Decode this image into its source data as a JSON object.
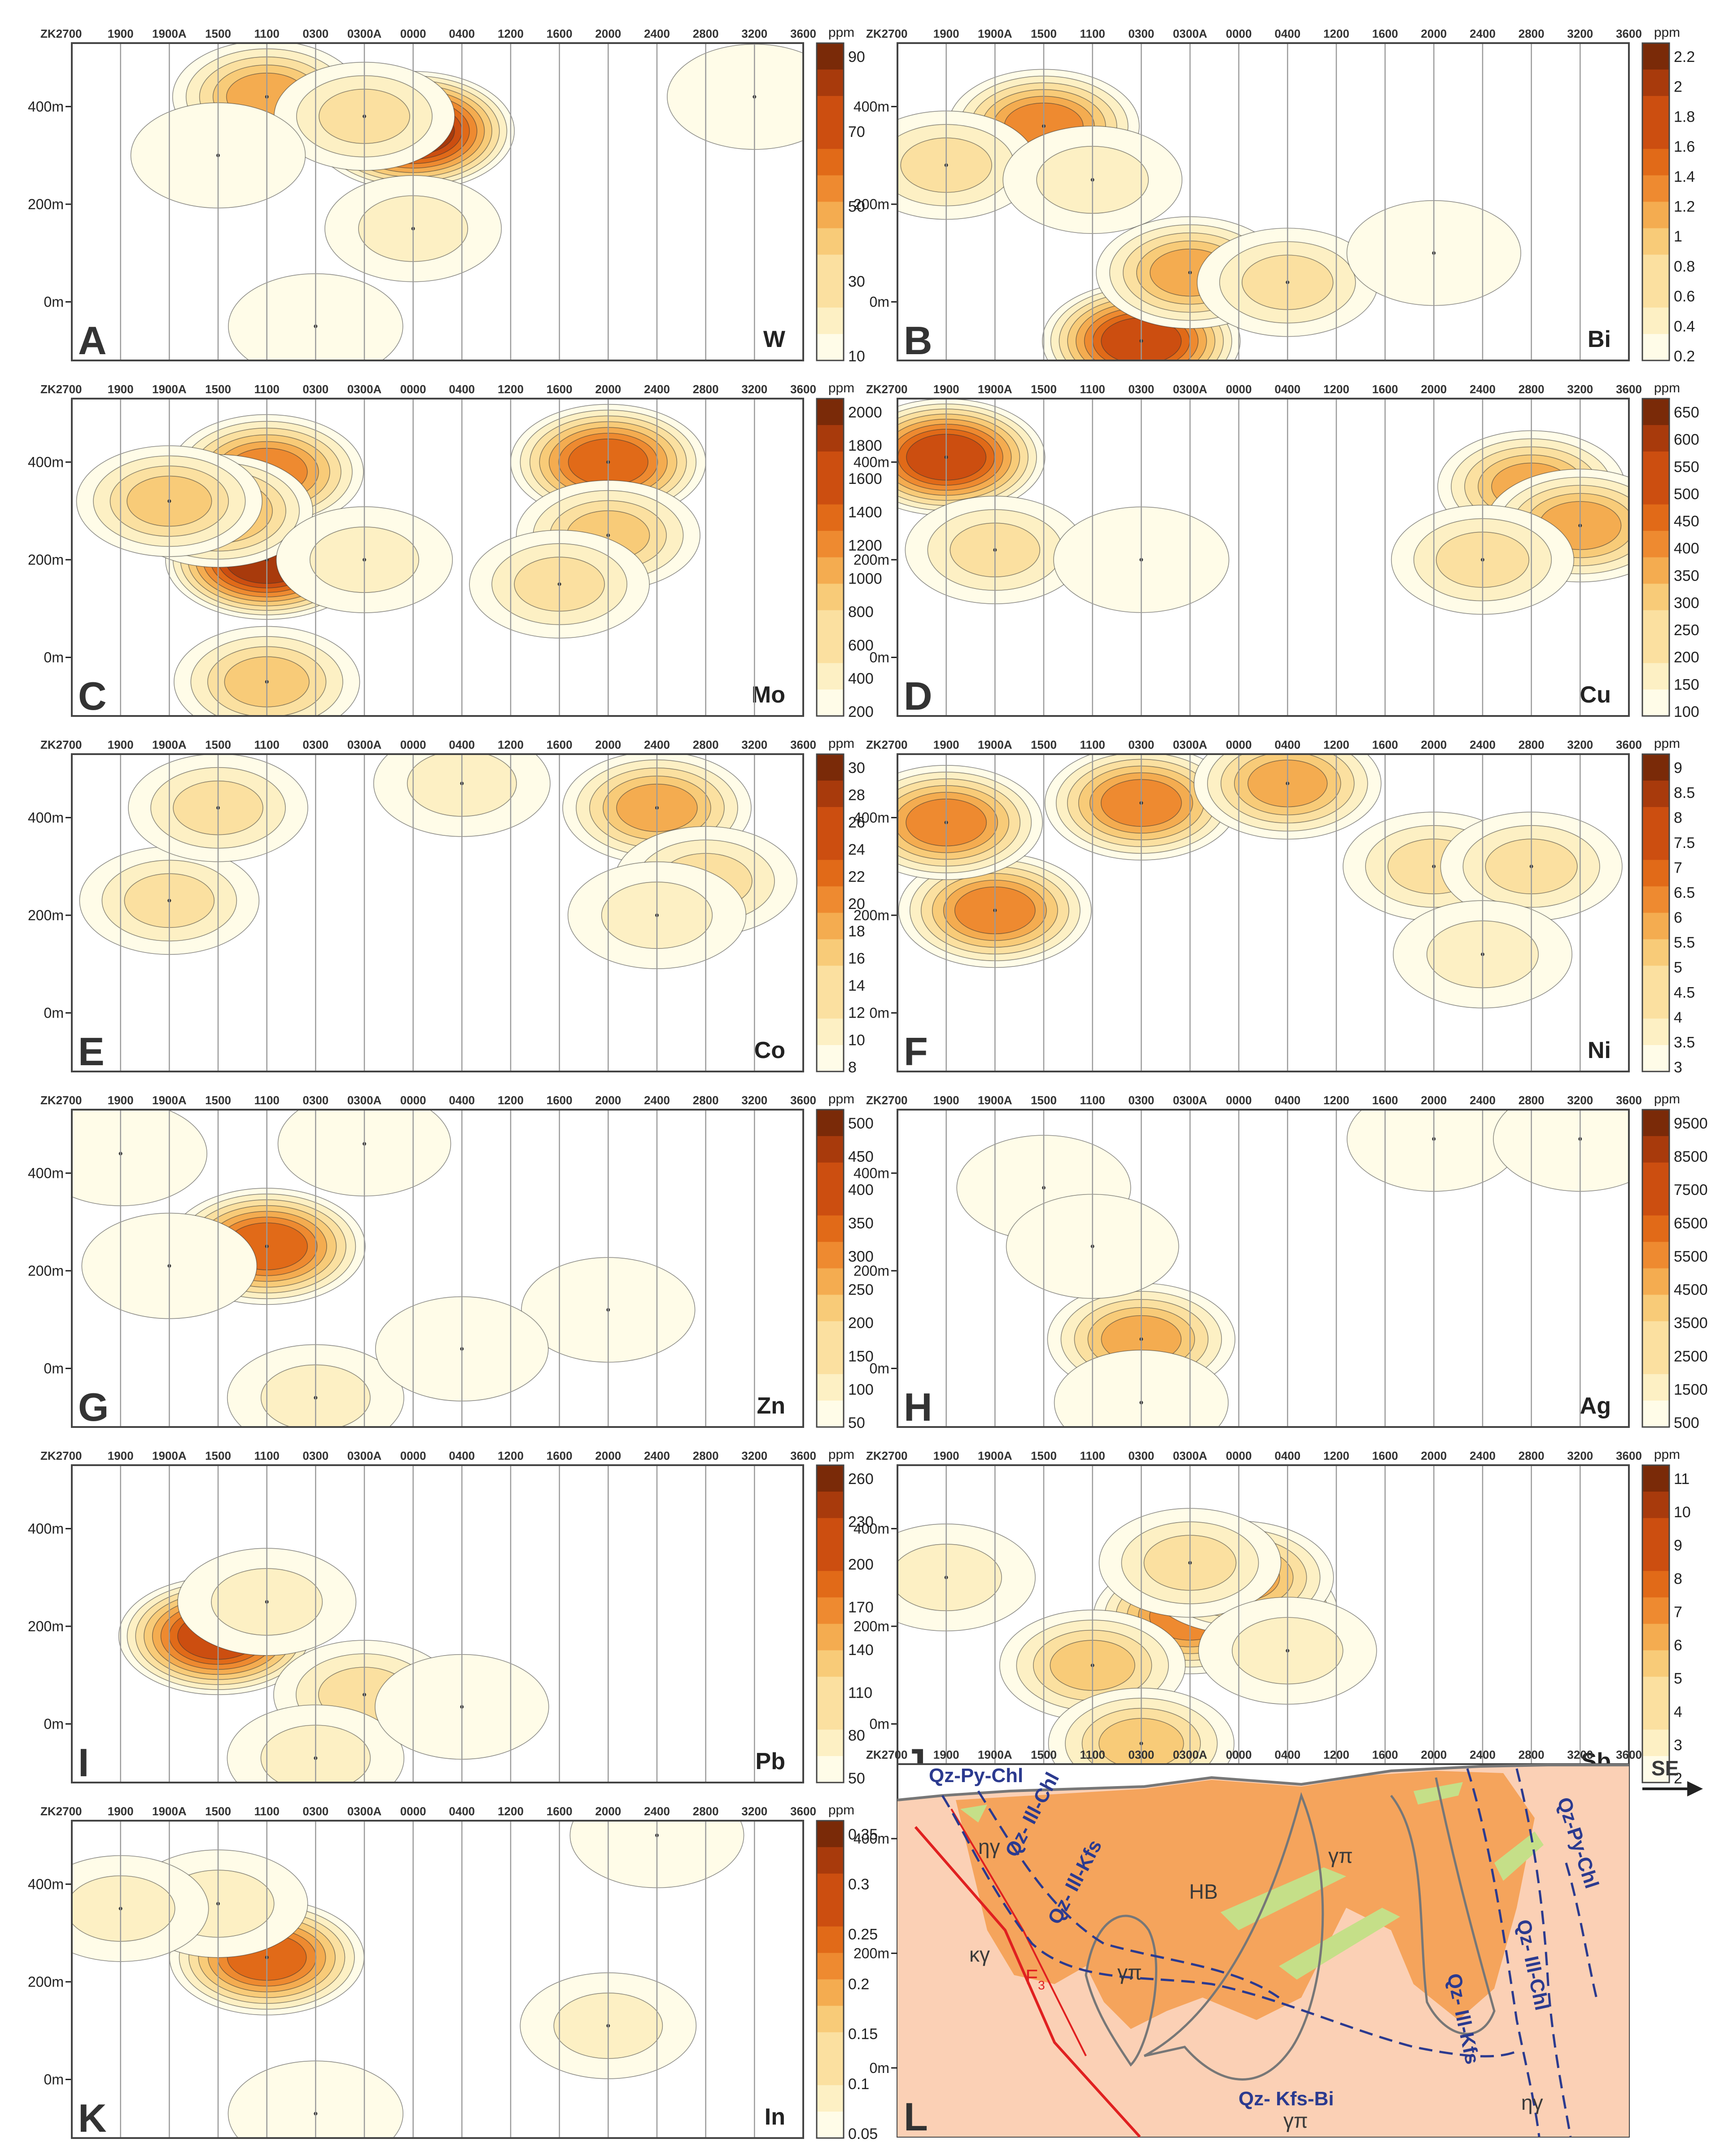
{
  "chart_data": [
    {
      "type": "heatmap",
      "id": "A",
      "element": "W",
      "unit": "ppm",
      "colorbar_ticks": [
        "90",
        "70",
        "50",
        "30",
        "10"
      ],
      "color_range": [
        10,
        100
      ],
      "blobs": [
        {
          "x": "1100",
          "y": 420,
          "v": 55
        },
        {
          "x": "0000",
          "y": 350,
          "v": 90
        },
        {
          "x": "0300A",
          "y": 380,
          "v": 35
        },
        {
          "x": "1500",
          "y": 300,
          "v": 20
        },
        {
          "x": "0000",
          "y": 150,
          "v": 25
        },
        {
          "x": "0300",
          "y": -50,
          "v": 20
        },
        {
          "x": "3200",
          "y": 420,
          "v": 20
        }
      ]
    },
    {
      "type": "heatmap",
      "id": "B",
      "element": "Bi",
      "unit": "ppm",
      "colorbar_ticks": [
        "2.2",
        "2",
        "1.8",
        "1.6",
        "1.4",
        "1.2",
        "1",
        "0.8",
        "0.6",
        "0.4",
        "0.2"
      ],
      "color_range": [
        0.2,
        2.3
      ],
      "blobs": [
        {
          "x": "1500",
          "y": 360,
          "v": 1.4
        },
        {
          "x": "1900",
          "y": 280,
          "v": 0.8
        },
        {
          "x": "1100",
          "y": 250,
          "v": 0.7
        },
        {
          "x": "0300",
          "y": -80,
          "v": 1.8
        },
        {
          "x": "0300A",
          "y": 60,
          "v": 1.2
        },
        {
          "x": "0400",
          "y": 40,
          "v": 0.8
        },
        {
          "x": "2000",
          "y": 100,
          "v": 0.4
        }
      ]
    },
    {
      "type": "heatmap",
      "id": "C",
      "element": "Mo",
      "unit": "ppm",
      "colorbar_ticks": [
        "2000",
        "1800",
        "1600",
        "1400",
        "1200",
        "1000",
        "800",
        "600",
        "400",
        "200"
      ],
      "color_range": [
        200,
        2100
      ],
      "blobs": [
        {
          "x": "1100",
          "y": 200,
          "v": 1900
        },
        {
          "x": "1100",
          "y": 380,
          "v": 1400
        },
        {
          "x": "1500",
          "y": 300,
          "v": 1200
        },
        {
          "x": "1900A",
          "y": 320,
          "v": 1000
        },
        {
          "x": "2000",
          "y": 400,
          "v": 1500
        },
        {
          "x": "2000",
          "y": 250,
          "v": 900
        },
        {
          "x": "1100",
          "y": -50,
          "v": 1000
        },
        {
          "x": "1600",
          "y": 150,
          "v": 700
        },
        {
          "x": "0300A",
          "y": 200,
          "v": 500
        }
      ]
    },
    {
      "type": "heatmap",
      "id": "D",
      "element": "Cu",
      "unit": "ppm",
      "colorbar_ticks": [
        "650",
        "600",
        "550",
        "500",
        "450",
        "400",
        "350",
        "300",
        "250",
        "200",
        "150",
        "100"
      ],
      "color_range": [
        100,
        700
      ],
      "blobs": [
        {
          "x": "1900",
          "y": 410,
          "v": 550
        },
        {
          "x": "2800",
          "y": 350,
          "v": 380
        },
        {
          "x": "3200",
          "y": 270,
          "v": 420
        },
        {
          "x": "2400",
          "y": 200,
          "v": 300
        },
        {
          "x": "1900A",
          "y": 220,
          "v": 250
        },
        {
          "x": "0300",
          "y": 200,
          "v": 180
        }
      ]
    },
    {
      "type": "heatmap",
      "id": "E",
      "element": "Co",
      "unit": "ppm",
      "colorbar_ticks": [
        "30",
        "28",
        "26",
        "24",
        "22",
        "20",
        "18",
        "16",
        "14",
        "12",
        "10",
        "8"
      ],
      "color_range": [
        8,
        32
      ],
      "blobs": [
        {
          "x": "2400",
          "y": 420,
          "v": 20
        },
        {
          "x": "2800",
          "y": 270,
          "v": 16
        },
        {
          "x": "1900A",
          "y": 230,
          "v": 14
        },
        {
          "x": "2400",
          "y": 200,
          "v": 13
        },
        {
          "x": "1500",
          "y": 420,
          "v": 14
        },
        {
          "x": "0400",
          "y": 470,
          "v": 12
        }
      ]
    },
    {
      "type": "heatmap",
      "id": "F",
      "element": "Ni",
      "unit": "ppm",
      "colorbar_ticks": [
        "9",
        "8.5",
        "8",
        "7.5",
        "7",
        "6.5",
        "6",
        "5.5",
        "5",
        "4.5",
        "4",
        "3.5",
        "3"
      ],
      "color_range": [
        3,
        9.5
      ],
      "blobs": [
        {
          "x": "1900A",
          "y": 210,
          "v": 7
        },
        {
          "x": "1900",
          "y": 390,
          "v": 7
        },
        {
          "x": "0300",
          "y": 430,
          "v": 7
        },
        {
          "x": "0400",
          "y": 470,
          "v": 6
        },
        {
          "x": "2000",
          "y": 300,
          "v": 5
        },
        {
          "x": "2800",
          "y": 300,
          "v": 5
        },
        {
          "x": "2400",
          "y": 120,
          "v": 4.5
        }
      ]
    },
    {
      "type": "heatmap",
      "id": "G",
      "element": "Zn",
      "unit": "ppm",
      "colorbar_ticks": [
        "500",
        "450",
        "400",
        "350",
        "300",
        "250",
        "200",
        "150",
        "100",
        "50"
      ],
      "color_range": [
        50,
        530
      ],
      "blobs": [
        {
          "x": "1100",
          "y": 250,
          "v": 400
        },
        {
          "x": "1900A",
          "y": 210,
          "v": 110
        },
        {
          "x": "0300",
          "y": -60,
          "v": 130
        },
        {
          "x": "2000",
          "y": 120,
          "v": 90
        },
        {
          "x": "0400",
          "y": 40,
          "v": 80
        },
        {
          "x": "0300A",
          "y": 460,
          "v": 80
        },
        {
          "x": "1900",
          "y": 440,
          "v": 80
        }
      ]
    },
    {
      "type": "heatmap",
      "id": "H",
      "element": "Ag",
      "unit": "ppm",
      "colorbar_ticks": [
        "9500",
        "8500",
        "7500",
        "6500",
        "5500",
        "4500",
        "3500",
        "2500",
        "1500",
        "500"
      ],
      "color_range": [
        500,
        10000
      ],
      "blobs": [
        {
          "x": "0300",
          "y": 60,
          "v": 5000
        },
        {
          "x": "0300",
          "y": -70,
          "v": 1400
        },
        {
          "x": "1500",
          "y": 370,
          "v": 1400
        },
        {
          "x": "2000",
          "y": 470,
          "v": 1300
        },
        {
          "x": "3200",
          "y": 470,
          "v": 1300
        },
        {
          "x": "1100",
          "y": 250,
          "v": 1000
        }
      ]
    },
    {
      "type": "heatmap",
      "id": "I",
      "element": "Pb",
      "unit": "ppm",
      "colorbar_ticks": [
        "260",
        "230",
        "200",
        "170",
        "140",
        "110",
        "80",
        "50"
      ],
      "color_range": [
        50,
        280
      ],
      "blobs": [
        {
          "x": "1500",
          "y": 180,
          "v": 230
        },
        {
          "x": "1100",
          "y": 250,
          "v": 100
        },
        {
          "x": "0300A",
          "y": 60,
          "v": 120
        },
        {
          "x": "0300",
          "y": -70,
          "v": 90
        },
        {
          "x": "0400",
          "y": 35,
          "v": 70
        }
      ]
    },
    {
      "type": "heatmap",
      "id": "J",
      "element": "Sb",
      "unit": "ppm",
      "colorbar_ticks": [
        "11",
        "10",
        "9",
        "8",
        "7",
        "6",
        "5",
        "4",
        "3",
        "2"
      ],
      "color_range": [
        2,
        11.5
      ],
      "blobs": [
        {
          "x": "0000",
          "y": 230,
          "v": 9
        },
        {
          "x": "0300A",
          "y": 220,
          "v": 8
        },
        {
          "x": "0000",
          "y": 300,
          "v": 7
        },
        {
          "x": "0300A",
          "y": 330,
          "v": 5
        },
        {
          "x": "1100",
          "y": 120,
          "v": 6
        },
        {
          "x": "0300",
          "y": -40,
          "v": 6
        },
        {
          "x": "1900",
          "y": 300,
          "v": 4
        },
        {
          "x": "0400",
          "y": 150,
          "v": 4
        }
      ]
    },
    {
      "type": "heatmap",
      "id": "K",
      "element": "In",
      "unit": "ppm",
      "colorbar_ticks": [
        "0.35",
        "0.3",
        "0.25",
        "0.2",
        "0.15",
        "0.1",
        "0.05"
      ],
      "color_range": [
        0.05,
        0.38
      ],
      "blobs": [
        {
          "x": "1100",
          "y": 250,
          "v": 0.27
        },
        {
          "x": "1500",
          "y": 360,
          "v": 0.13
        },
        {
          "x": "1900",
          "y": 350,
          "v": 0.1
        },
        {
          "x": "2000",
          "y": 110,
          "v": 0.1
        },
        {
          "x": "0300",
          "y": -70,
          "v": 0.09
        },
        {
          "x": "2400",
          "y": 500,
          "v": 0.08
        }
      ]
    }
  ],
  "axes": {
    "drillholes": [
      "ZK2700",
      "1900",
      "1900A",
      "1500",
      "1100",
      "0300",
      "0300A",
      "0000",
      "0400",
      "1200",
      "1600",
      "2000",
      "2400",
      "2800",
      "3200",
      "3600"
    ],
    "y_ticks": [
      "400m",
      "200m",
      "0m"
    ],
    "y_values": [
      400,
      200,
      0
    ],
    "ylim": [
      -120,
      530
    ]
  },
  "geology": {
    "panel": "L",
    "direction": "SE",
    "labels": {
      "qz_py_chl_left": "Qz-Py-Chl",
      "qz_ill_chl_left": "Qz- Ill-Chl",
      "qz_ill_kfs_left": "Qz- Ill-Kfs",
      "eta_gamma_left": "ηγ",
      "kappa_gamma": "κγ",
      "fault": "F",
      "fault_sub": "3",
      "gamma_pi_mid": "γπ",
      "hb": "HB",
      "gamma_pi_right": "γπ",
      "qz_ill_kfs_right": "Qz- Ill-Kfs",
      "qz_py_chl_right": "Qz-Py-Chl",
      "qz_ill_chl_right": "Qz- Ill-Chl",
      "qz_kfs_bi": "Qz- Kfs-Bi",
      "gamma_pi_bottom": "γπ",
      "eta_gamma_right": "ηγ"
    }
  },
  "colors": {
    "ramp": [
      "#fffce8",
      "#fdf0c4",
      "#fbe0a0",
      "#f8cb78",
      "#f4ac50",
      "#ee8a30",
      "#e16a18",
      "#cc4e10",
      "#a83a0c",
      "#7a2a08"
    ],
    "contour": "#333333",
    "gridline": "#9a9a9a",
    "alteration_orange": "#f5a45c",
    "host_pink": "#fbd0b5",
    "sericite_green": "#c5df88",
    "blue_line": "#2b3a8f",
    "fault_red": "#e02020"
  }
}
